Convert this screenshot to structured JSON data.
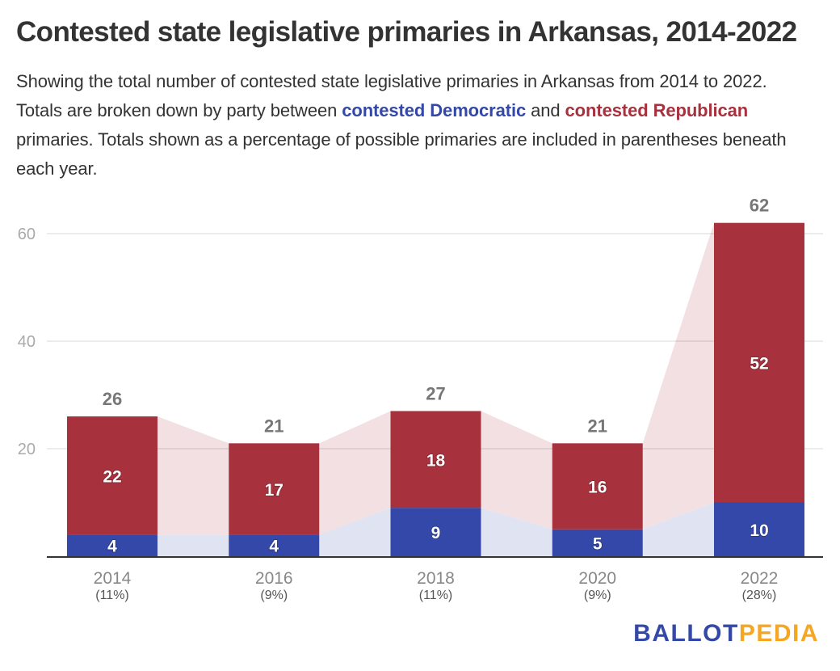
{
  "header": {
    "title": "Contested state legislative primaries in Arkansas, 2014-2022",
    "subtitle_parts": {
      "p1": "Showing the total number of contested state legislative primaries in Arkansas from 2014 to 2022. Totals are broken down by party between ",
      "dem": "contested Democratic",
      "p2": " and ",
      "rep": "contested Republican",
      "p3": " primaries. Totals shown as a percentage of possible primaries are included in parentheses beneath each year."
    }
  },
  "colors": {
    "democratic": "#3348a8",
    "republican": "#a8313e",
    "democratic_area": "#e0e3f2",
    "republican_area": "#f3e0e3",
    "brand_blue": "#3348a8",
    "brand_orange": "#f5a623"
  },
  "logo": {
    "part1": "BALLOT",
    "part2": "PEDIA"
  },
  "chart_data": {
    "type": "bar",
    "stacked": true,
    "title": "Contested state legislative primaries in Arkansas, 2014-2022",
    "xlabel": "",
    "ylabel": "",
    "categories": [
      "2014",
      "2016",
      "2018",
      "2020",
      "2022"
    ],
    "category_sublabels": [
      "(11%)",
      "(9%)",
      "(11%)",
      "(9%)",
      "(28%)"
    ],
    "series": [
      {
        "name": "contested Democratic",
        "values": [
          4,
          4,
          9,
          5,
          10
        ]
      },
      {
        "name": "contested Republican",
        "values": [
          22,
          17,
          18,
          16,
          52
        ]
      }
    ],
    "totals": [
      26,
      21,
      27,
      21,
      62
    ],
    "yticks": [
      20,
      40,
      60
    ],
    "ylim": [
      0,
      60
    ],
    "grid": true,
    "legend": "inline-in-subtitle"
  }
}
